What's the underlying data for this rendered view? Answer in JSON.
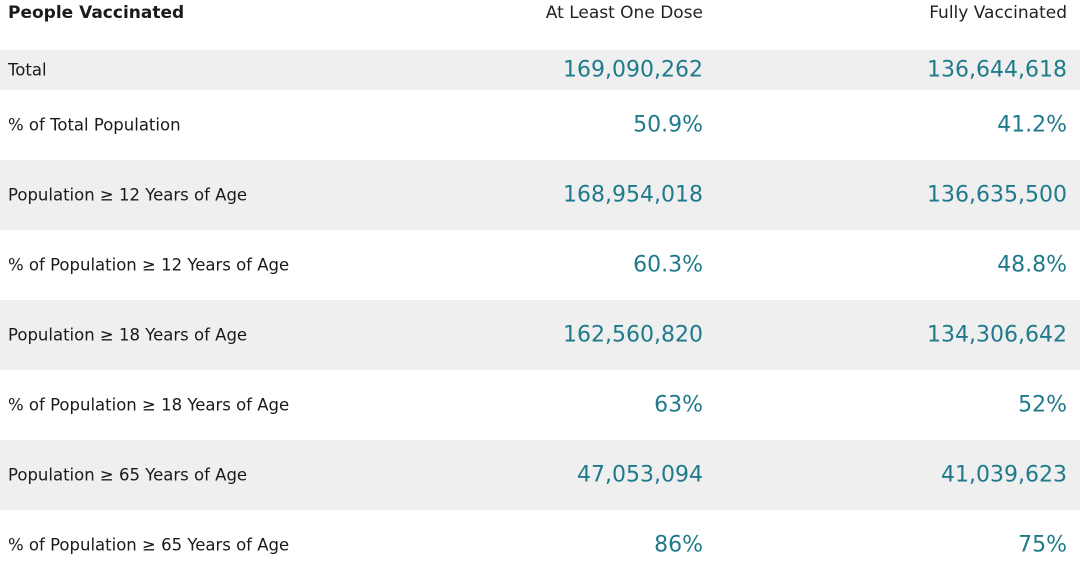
{
  "table": {
    "headers": [
      "People Vaccinated",
      "At Least One Dose",
      "Fully Vaccinated"
    ],
    "rows": [
      {
        "label": "Total",
        "one_dose": "169,090,262",
        "fully": "136,644,618"
      },
      {
        "label": "% of Total Population",
        "one_dose": "50.9%",
        "fully": "41.2%"
      },
      {
        "label": "Population ≥ 12 Years of Age",
        "one_dose": "168,954,018",
        "fully": "136,635,500"
      },
      {
        "label": "% of Population ≥ 12 Years of Age",
        "one_dose": "60.3%",
        "fully": "48.8%"
      },
      {
        "label": "Population ≥ 18 Years of Age",
        "one_dose": "162,560,820",
        "fully": "134,306,642"
      },
      {
        "label": "% of Population ≥ 18 Years of Age",
        "one_dose": "63%",
        "fully": "52%"
      },
      {
        "label": "Population ≥ 65 Years of Age",
        "one_dose": "47,053,094",
        "fully": "41,039,623"
      },
      {
        "label": "% of Population ≥ 65 Years of Age",
        "one_dose": "86%",
        "fully": "75%"
      }
    ]
  },
  "colors": {
    "value_text": "#1f7a8c",
    "row_shade": "#efefef",
    "label_text": "#1a1a1a"
  }
}
